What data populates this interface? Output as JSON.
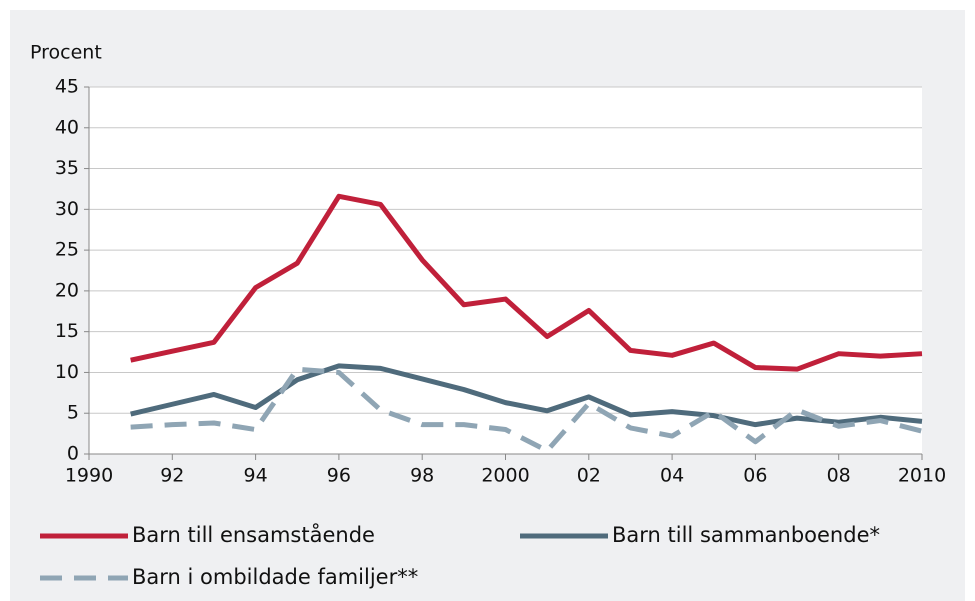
{
  "chart_data": {
    "type": "line",
    "y_label": "Procent",
    "x": [
      1991,
      1992,
      1993,
      1994,
      1995,
      1996,
      1997,
      1998,
      1999,
      2000,
      2001,
      2002,
      2003,
      2004,
      2005,
      2006,
      2007,
      2008,
      2009,
      2010
    ],
    "series": [
      {
        "name": "Barn till ensamstående",
        "color": "#c0203a",
        "dash": false,
        "values": [
          11.5,
          12.6,
          13.7,
          20.4,
          23.4,
          31.6,
          30.6,
          23.8,
          18.3,
          19.0,
          14.4,
          17.6,
          12.7,
          12.1,
          13.6,
          10.6,
          10.4,
          12.3,
          12.0,
          12.3
        ]
      },
      {
        "name": "Barn till sammanboende*",
        "color": "#4f6b7c",
        "dash": false,
        "values": [
          4.9,
          6.1,
          7.3,
          5.7,
          9.1,
          10.8,
          10.5,
          9.2,
          7.9,
          6.3,
          5.3,
          7.0,
          4.8,
          5.2,
          4.7,
          3.6,
          4.4,
          3.9,
          4.5,
          4.0
        ]
      },
      {
        "name": "Barn i ombildade familjer**",
        "color": "#8fa5b4",
        "dash": true,
        "values": [
          3.3,
          3.6,
          3.8,
          3.0,
          10.4,
          10.0,
          5.4,
          3.6,
          3.6,
          3.0,
          0.4,
          6.2,
          3.2,
          2.2,
          5.2,
          1.5,
          5.4,
          3.4,
          4.1,
          2.8
        ]
      }
    ],
    "xlim": [
      1990,
      2010
    ],
    "xticks": [
      1990,
      {
        "value": 1992,
        "label": "92"
      },
      {
        "value": 1994,
        "label": "94"
      },
      {
        "value": 1996,
        "label": "96"
      },
      {
        "value": 1998,
        "label": "98"
      },
      2000,
      {
        "value": 2002,
        "label": "02"
      },
      {
        "value": 2004,
        "label": "04"
      },
      {
        "value": 2006,
        "label": "06"
      },
      {
        "value": 2008,
        "label": "08"
      },
      2010
    ],
    "ylim": [
      0,
      45
    ],
    "yticks": [
      0,
      5,
      10,
      15,
      20,
      25,
      30,
      35,
      40,
      45
    ],
    "grid": true
  }
}
